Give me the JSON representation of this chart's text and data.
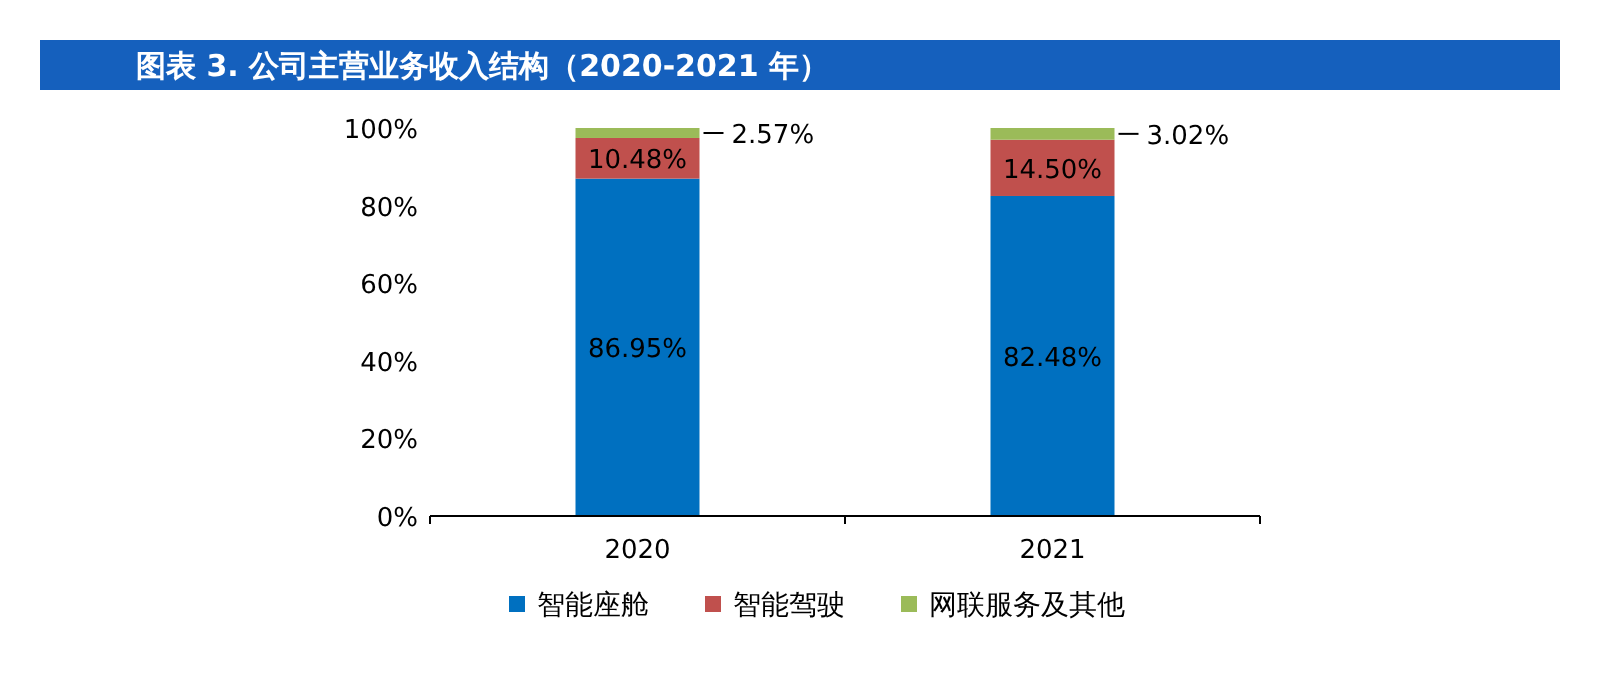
{
  "chart_data": {
    "type": "bar",
    "stacked": true,
    "title": "图表 3.  公司主营业务收入结构（2020-2021 年）",
    "categories": [
      "2020",
      "2021"
    ],
    "series": [
      {
        "name": "智能座舱",
        "color": "#0070c0",
        "values": [
          86.95,
          82.48
        ],
        "value_labels": [
          "86.95%",
          "82.48%"
        ]
      },
      {
        "name": "智能驾驶",
        "color": "#c0504d",
        "values": [
          10.48,
          14.5
        ],
        "value_labels": [
          "10.48%",
          "14.50%"
        ]
      },
      {
        "name": "网联服务及其他",
        "color": "#9bbb59",
        "values": [
          2.57,
          3.02
        ],
        "value_labels": [
          "2.57%",
          "3.02%"
        ]
      }
    ],
    "ylim": [
      0,
      100
    ],
    "yticks": [
      {
        "value": 0,
        "label": "0%"
      },
      {
        "value": 20,
        "label": "20%"
      },
      {
        "value": 40,
        "label": "40%"
      },
      {
        "value": 60,
        "label": "60%"
      },
      {
        "value": 80,
        "label": "80%"
      },
      {
        "value": 100,
        "label": "100%"
      }
    ],
    "grid": false,
    "legend": "bottom"
  }
}
